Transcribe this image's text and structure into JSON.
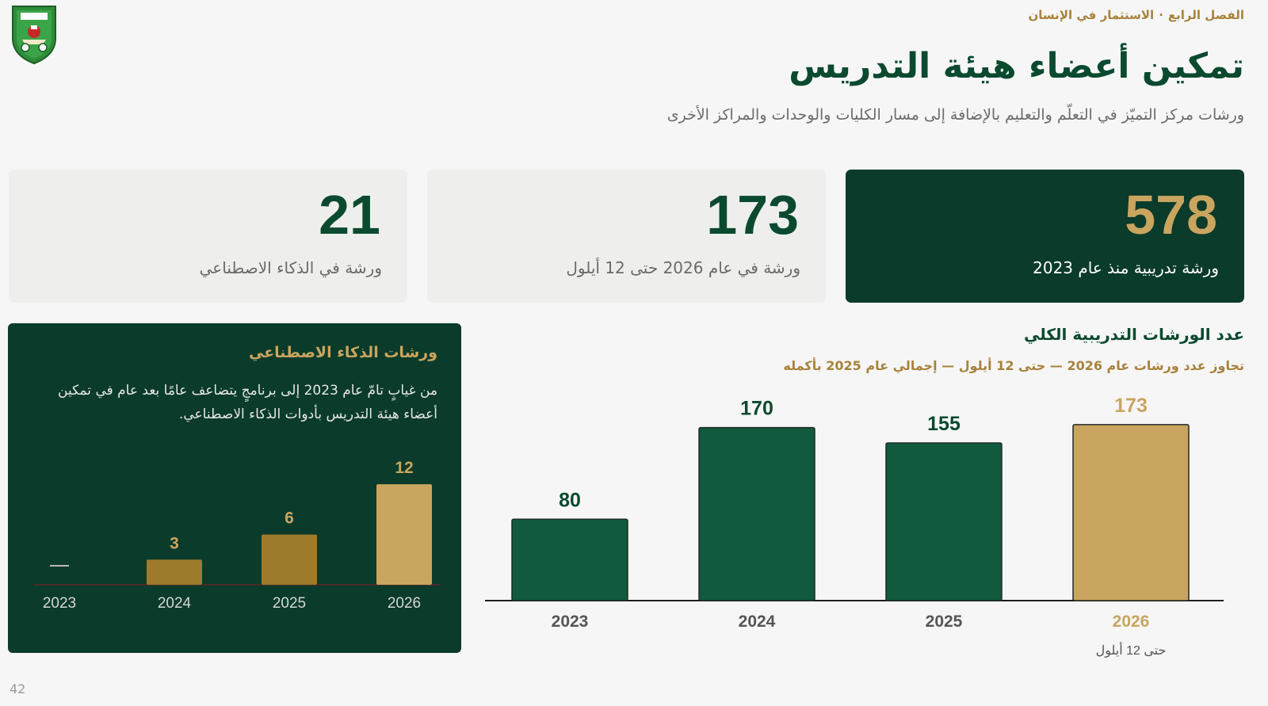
{
  "breadcrumb": {
    "chapter": "الفصل الرابع",
    "section": "الاستثمار في الإنسان",
    "separator": "·"
  },
  "page": {
    "title": "تمكين أعضاء هيئة التدريس",
    "subtitle": "ورشات مركز التميّز في التعلّم والتعليم بالإضافة إلى مسار الكليات والوحدات والمراكز الأخرى",
    "number": "42"
  },
  "stats": [
    {
      "value": "578",
      "label": "ورشة تدريبية منذ عام 2023"
    },
    {
      "value": "173",
      "label": "ورشة في عام 2026 حتى 12 أيلول"
    },
    {
      "value": "21",
      "label": "ورشة في الذكاء الاصطناعي"
    }
  ],
  "ai_panel": {
    "title": "ورشات الذكاء الاصطناعي",
    "description": "من غيابٍ تامّ عام 2023 إلى برنامجٍ يتضاعف عامًا بعد عام في تمكين أعضاء هيئة التدريس بأدوات الذكاء الاصطناعي.",
    "zero_marker": "—"
  },
  "main_chart": {
    "title": "عدد الورشات التدريبية الكلي",
    "subtitle": "تجاوز عدد ورشات عام 2026 — حتى 12 أيلول — إجمالي عام 2025 بأكمله"
  },
  "colors": {
    "dark_green": "#0b3b2a",
    "bar_green": "#115a3d",
    "gold": "#c9a55f",
    "bronze": "#9e7a2c",
    "title_green": "#0b4a2f"
  },
  "chart_data": [
    {
      "type": "bar",
      "categories": [
        "2023",
        "2024",
        "2025",
        "2026"
      ],
      "values": [
        80,
        170,
        155,
        173
      ],
      "category_notes": [
        "",
        "",
        "",
        "حتى 12 أيلول"
      ],
      "ylim": [
        0,
        190
      ],
      "grid": false
    },
    {
      "type": "bar",
      "categories": [
        "2023",
        "2024",
        "2025",
        "2026"
      ],
      "values": [
        0,
        3,
        6,
        12
      ],
      "ylim": [
        0,
        14
      ],
      "grid": false
    }
  ]
}
